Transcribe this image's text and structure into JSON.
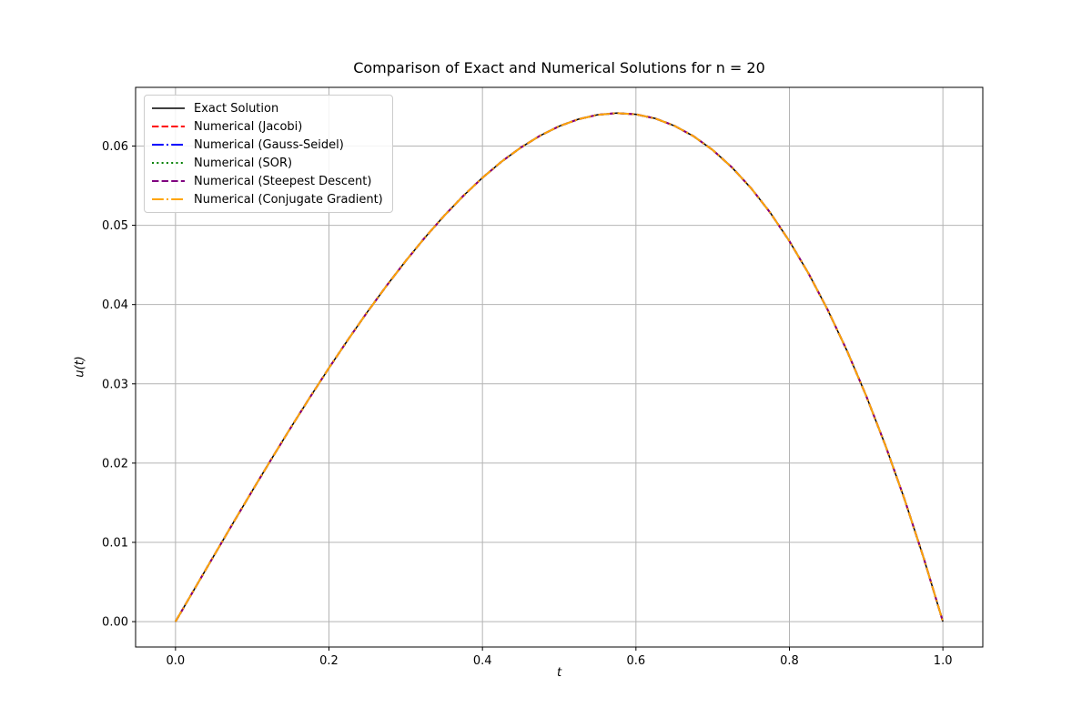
{
  "chart_data": {
    "type": "line",
    "title": "Comparison of Exact and Numerical Solutions for n = 20",
    "xlabel": "t",
    "ylabel": "u(t)",
    "grid": true,
    "grid_color": "#b4b4b4",
    "background_color": "#ffffff",
    "legend_position": "upper left",
    "xlim": [
      -0.052,
      1.052
    ],
    "ylim": [
      -0.0032,
      0.0674
    ],
    "x_ticks": {
      "values": [
        0.0,
        0.2,
        0.4,
        0.6,
        0.8,
        1.0
      ],
      "labels": [
        "0.0",
        "0.2",
        "0.4",
        "0.6",
        "0.8",
        "1.0"
      ]
    },
    "y_ticks": {
      "values": [
        0.0,
        0.01,
        0.02,
        0.03,
        0.04,
        0.05,
        0.06
      ],
      "labels": [
        "0.00",
        "0.01",
        "0.02",
        "0.03",
        "0.04",
        "0.05",
        "0.06"
      ]
    },
    "x": [
      0,
      0.025,
      0.05,
      0.075,
      0.1,
      0.125,
      0.15,
      0.175,
      0.2,
      0.225,
      0.25,
      0.275,
      0.3,
      0.325,
      0.35,
      0.375,
      0.4,
      0.425,
      0.45,
      0.475,
      0.5,
      0.525,
      0.55,
      0.575,
      0.6,
      0.625,
      0.65,
      0.675,
      0.7,
      0.725,
      0.75,
      0.775,
      0.8,
      0.825,
      0.85,
      0.875,
      0.9,
      0.925,
      0.95,
      0.975,
      1
    ],
    "y_exact": [
      0,
      0.00416,
      0.00831,
      0.01243,
      0.0165,
      0.02051,
      0.02444,
      0.02827,
      0.032,
      0.0356,
      0.03906,
      0.04237,
      0.0455,
      0.04845,
      0.05119,
      0.05371,
      0.056,
      0.05804,
      0.05981,
      0.0613,
      0.0625,
      0.06338,
      0.06394,
      0.06415,
      0.064,
      0.06348,
      0.06256,
      0.06124,
      0.0595,
      0.05732,
      0.05469,
      0.05159,
      0.048,
      0.04391,
      0.03931,
      0.03418,
      0.0285,
      0.02226,
      0.01544,
      0.00802,
      0
    ],
    "peak": {
      "t": 0.575,
      "u": 0.0642
    },
    "overlap_note": "All numerical series visually coincide with the exact solution curve",
    "series": [
      {
        "name": "Exact Solution",
        "color": "#000000",
        "linestyle": "solid",
        "width": 1.5,
        "y_source": "y_exact"
      },
      {
        "name": "Numerical (Jacobi)",
        "color": "#ff0000",
        "linestyle": "dashed",
        "width": 2,
        "y_source": "y_exact"
      },
      {
        "name": "Numerical (Gauss-Seidel)",
        "color": "#0000ff",
        "linestyle": "dashdot",
        "width": 2,
        "y_source": "y_exact"
      },
      {
        "name": "Numerical (SOR)",
        "color": "#008000",
        "linestyle": "dotted",
        "width": 2,
        "y_source": "y_exact"
      },
      {
        "name": "Numerical (Steepest Descent)",
        "color": "#800080",
        "linestyle": "dashed",
        "width": 2,
        "y_source": "y_exact"
      },
      {
        "name": "Numerical (Conjugate Gradient)",
        "color": "#ffa500",
        "linestyle": "dashdot",
        "width": 2,
        "y_source": "y_exact"
      }
    ]
  }
}
